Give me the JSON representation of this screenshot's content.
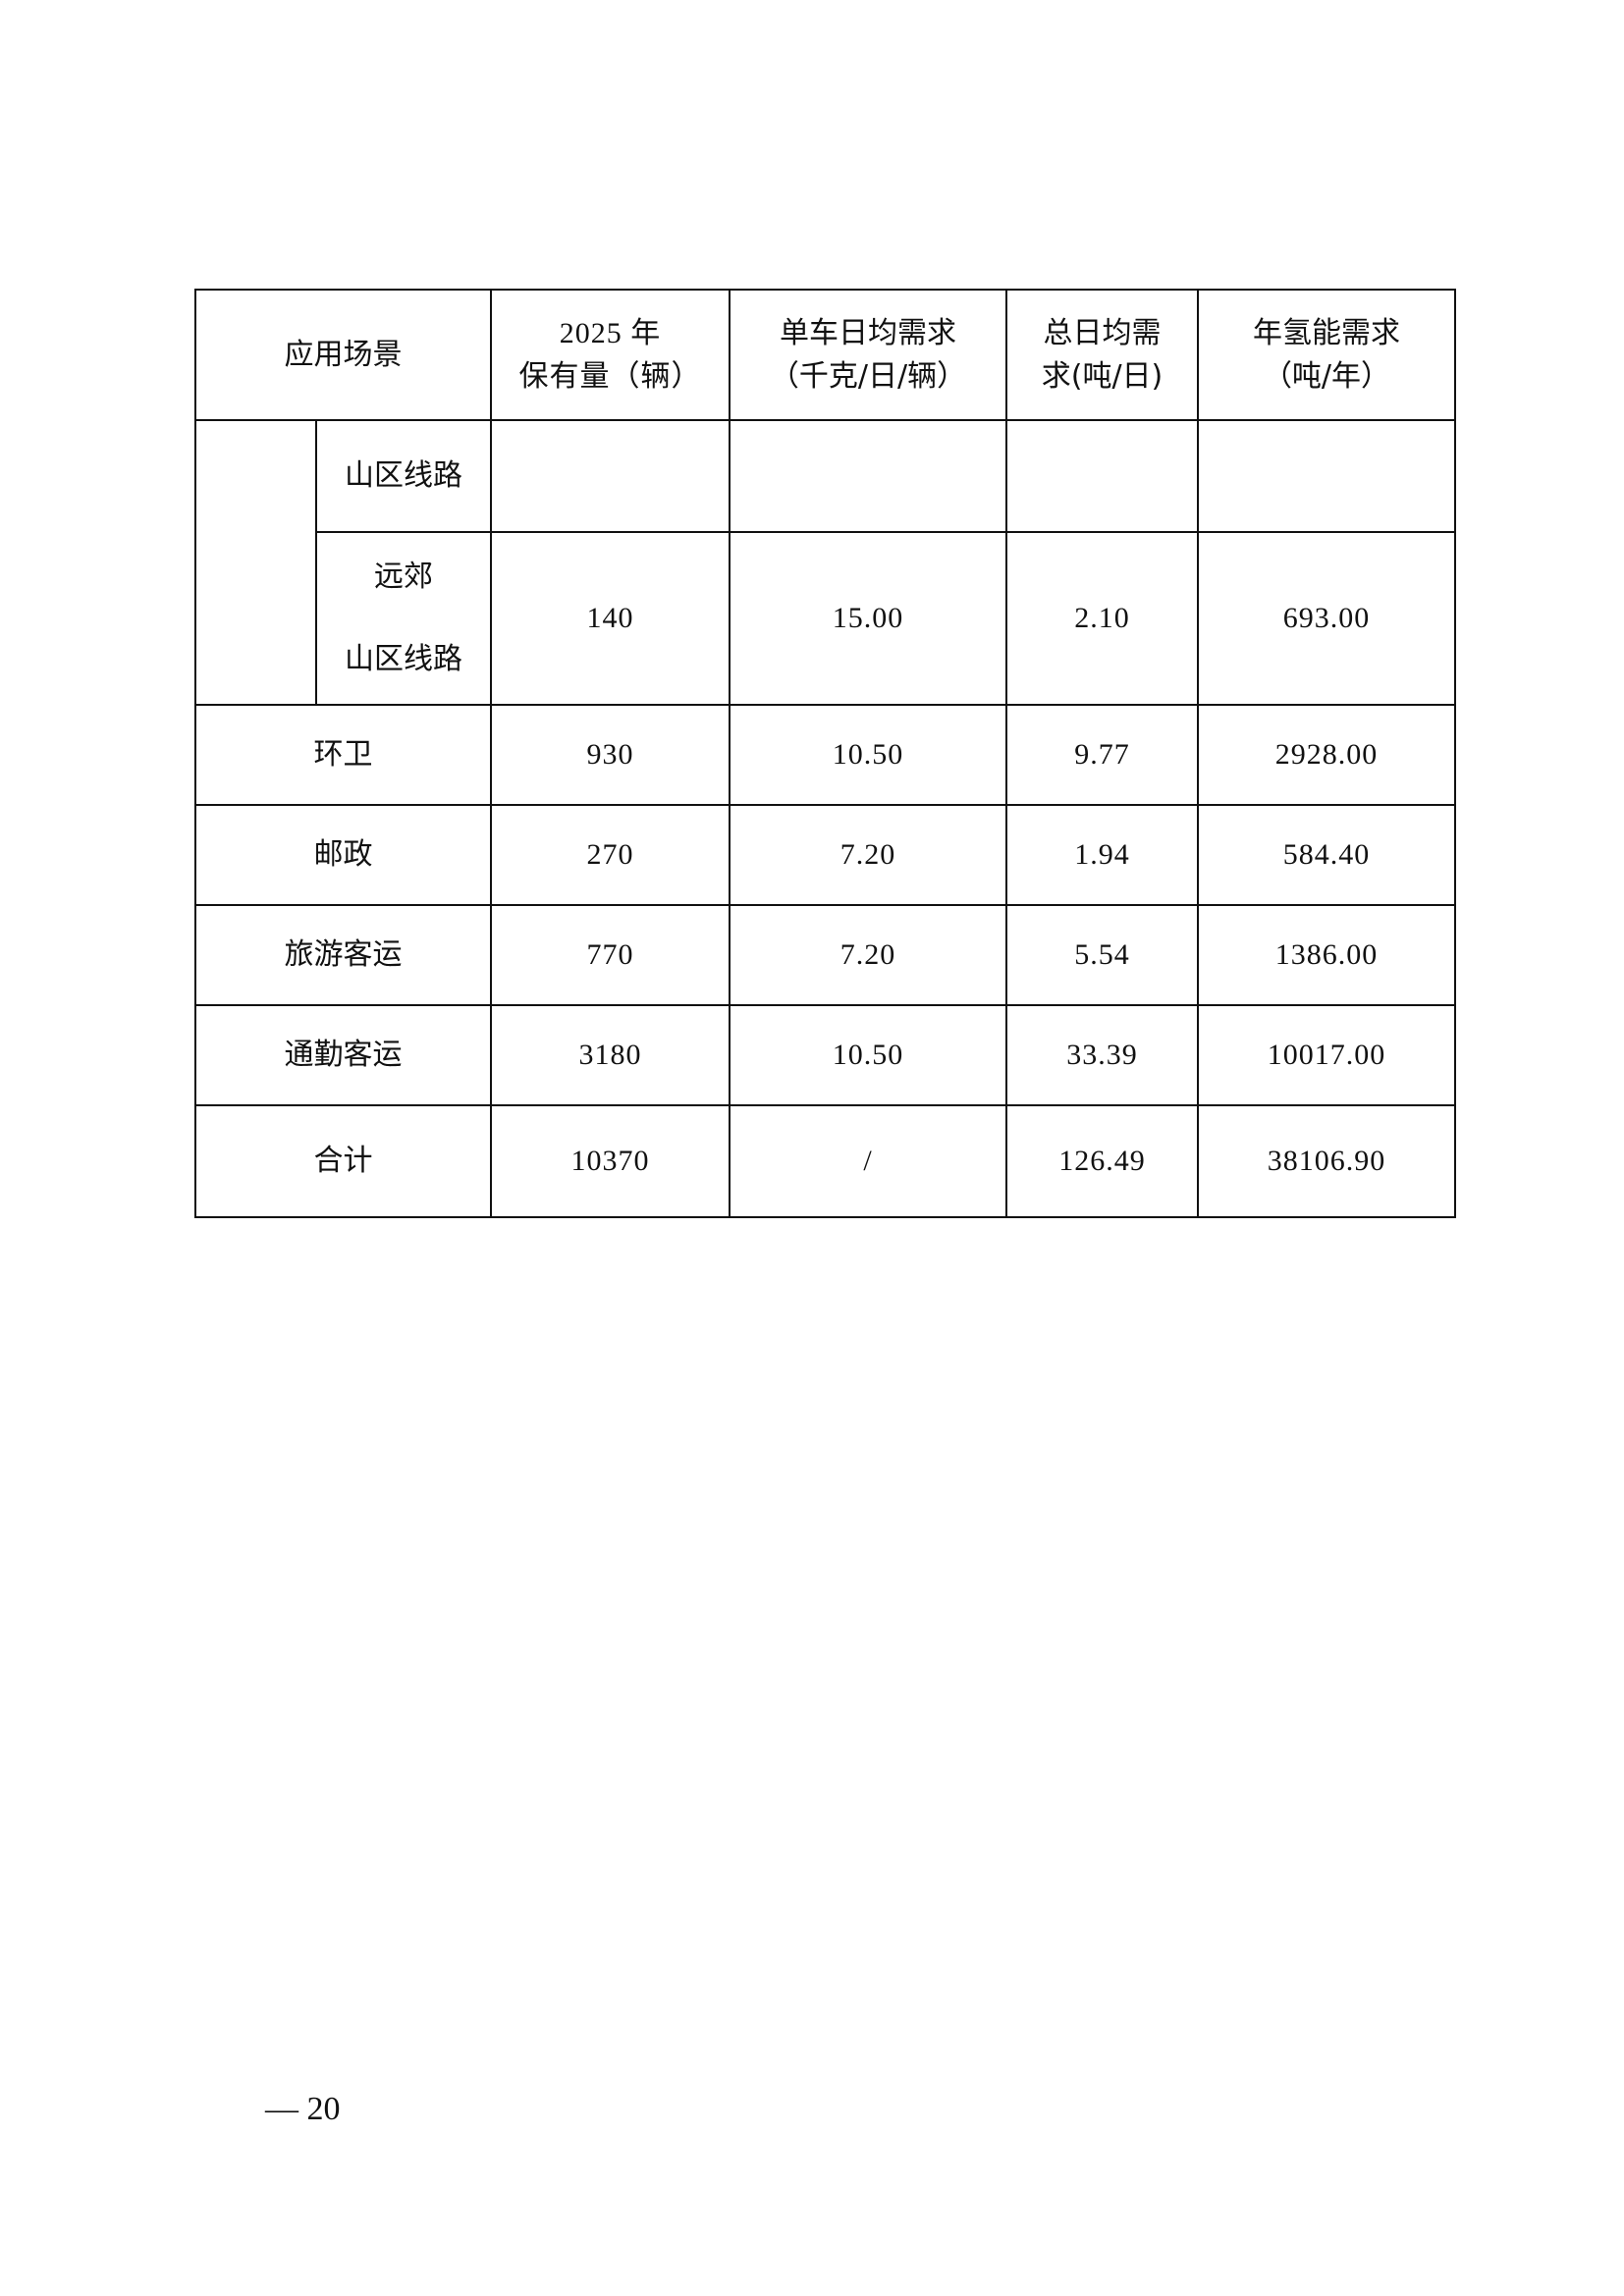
{
  "table": {
    "headers": {
      "scenario": "应用场景",
      "fleet_line1": "2025 年",
      "fleet_line2": "保有量（辆）",
      "per_vehicle_line1": "单车日均需求",
      "per_vehicle_line2": "（千克/日/辆）",
      "daily_total_line1": "总日均需",
      "daily_total_line2": "求(吨/日)",
      "annual_line1": "年氢能需求",
      "annual_line2": "（吨/年）"
    },
    "sub_rows": [
      {
        "name": "山区线路",
        "fleet": "",
        "per_vehicle": "",
        "daily_total": "",
        "annual": ""
      },
      {
        "name_line1": "远郊",
        "name_line2": "山区线路",
        "fleet": "140",
        "per_vehicle": "15.00",
        "daily_total": "2.10",
        "annual": "693.00"
      }
    ],
    "rows": [
      {
        "name": "环卫",
        "fleet": "930",
        "per_vehicle": "10.50",
        "daily_total": "9.77",
        "annual": "2928.00"
      },
      {
        "name": "邮政",
        "fleet": "270",
        "per_vehicle": "7.20",
        "daily_total": "1.94",
        "annual": "584.40"
      },
      {
        "name": "旅游客运",
        "fleet": "770",
        "per_vehicle": "7.20",
        "daily_total": "5.54",
        "annual": "1386.00"
      },
      {
        "name": "通勤客运",
        "fleet": "3180",
        "per_vehicle": "10.50",
        "daily_total": "33.39",
        "annual": "10017.00"
      },
      {
        "name": "合计",
        "fleet": "10370",
        "per_vehicle": "/",
        "daily_total": "126.49",
        "annual": "38106.90"
      }
    ]
  },
  "footer": {
    "page_number": "— 20"
  }
}
